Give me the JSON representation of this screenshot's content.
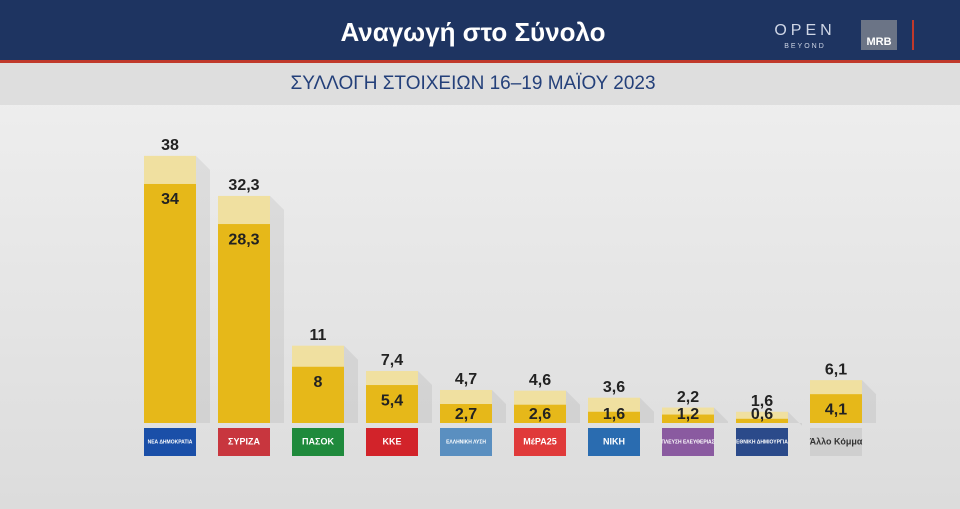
{
  "header": {
    "title": "Αναγωγή στο Σύνολο",
    "brand": "OPEN",
    "brand_sub": "BEYOND",
    "pollster": "MRB"
  },
  "chart_data": {
    "type": "bar",
    "subtitle": "ΣΥΛΛΟΓΗ ΣΤΟΙΧΕΙΩΝ 16–19 ΜΑΪΟΥ 2023",
    "categories": [
      "ΝΕΑ ΔΗΜΟΚΡΑΤΙΑ",
      "ΣΥΡΙΖΑ",
      "ΠΑΣΟΚ",
      "ΚΚΕ",
      "ΕΛΛΗΝΙΚΗ ΛΥΣΗ",
      "ΜέΡΑ25",
      "ΝΙΚΗ",
      "ΠΛΕΥΣΗ ΕΛΕΥΘΕΡΙΑΣ",
      "ΕΘΝΙΚΗ ΔΗΜΙΟΥΡΓΙΑ",
      "Άλλο Κόμμα"
    ],
    "category_colors": [
      "#1a4fa8",
      "#c8363e",
      "#1f8a3c",
      "#d2232a",
      "#5a8fc0",
      "#e03a3a",
      "#2a6cb0",
      "#8a5aa0",
      "#2b4a8a",
      "#cfcfcf"
    ],
    "series": [
      {
        "color": "#f0e0a0",
        "values": [
          38,
          32.3,
          11,
          7.4,
          4.7,
          4.6,
          3.6,
          2.2,
          1.6,
          6.1
        ],
        "value_labels": [
          "38",
          "32,3",
          "11",
          "7,4",
          "4,7",
          "4,6",
          "3,6",
          "2,2",
          "1,6",
          "6,1"
        ]
      },
      {
        "color": "#e6b819",
        "values": [
          34,
          28.3,
          8,
          5.4,
          2.7,
          2.6,
          1.6,
          1.2,
          0.6,
          4.1
        ],
        "value_labels": [
          "34",
          "28,3",
          "8",
          "5,4",
          "2,7",
          "2,6",
          "1,6",
          "1,2",
          "0,6",
          "4,1"
        ]
      }
    ]
  }
}
